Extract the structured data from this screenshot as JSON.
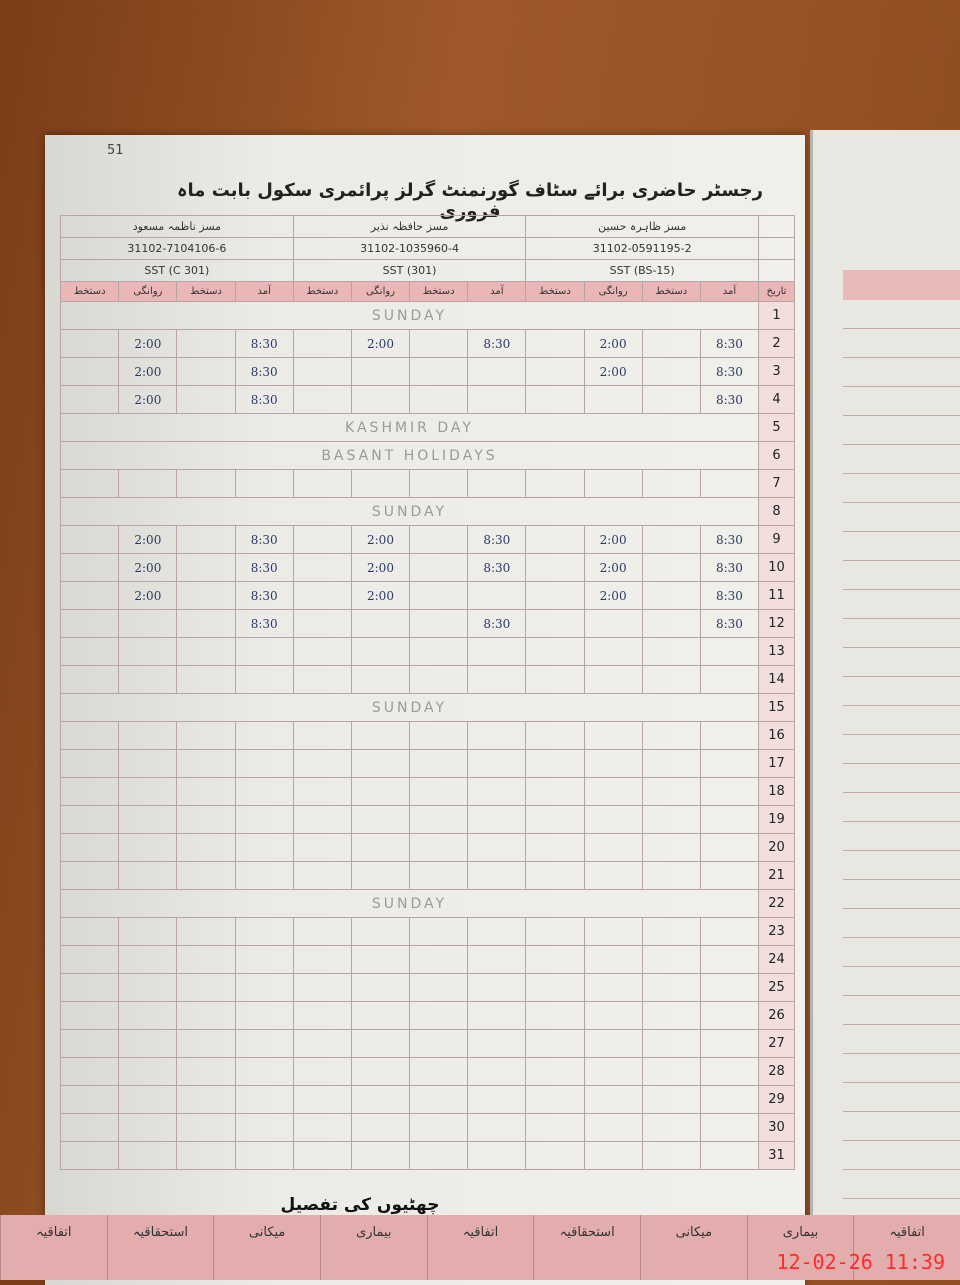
{
  "header": {
    "page_number": "51",
    "title": "رجسٹر حاضری برائے سٹاف گورنمنٹ گرلز پرائمری سکول بابت ماہ فروری"
  },
  "staff": [
    {
      "name": "مسز ظاہرہ حسین",
      "cnic": "31102-0591195-2",
      "post": "SST (BS-15)"
    },
    {
      "name": "مسز حافظہ نذیر",
      "cnic": "31102-1035960-4",
      "post": "SST (301)"
    },
    {
      "name": "مسز ناظمہ مسعود",
      "cnic": "31102-7104106-6",
      "post": "SST (C 301)"
    }
  ],
  "columns": {
    "date": "تاریخ",
    "arrival": "آمد",
    "sign_in": "دستخط",
    "departure": "روانگی",
    "sign_out": "دستخط"
  },
  "rows": [
    {
      "day": 1,
      "note": "SUNDAY"
    },
    {
      "day": 2,
      "times": [
        "8:30",
        "2:00",
        "8:30",
        "2:00",
        "8:30",
        "2:00"
      ]
    },
    {
      "day": 3,
      "times": [
        "8:30",
        "2:00",
        null,
        null,
        "8:30",
        "2:00"
      ]
    },
    {
      "day": 4,
      "times": [
        "8:30",
        null,
        null,
        null,
        "8:30",
        "2:00"
      ]
    },
    {
      "day": 5,
      "note": "KASHMIR DAY"
    },
    {
      "day": 6,
      "note": "BASANT HOLIDAYS"
    },
    {
      "day": 7
    },
    {
      "day": 8,
      "note": "SUNDAY"
    },
    {
      "day": 9,
      "times": [
        "8:30",
        "2:00",
        "8:30",
        "2:00",
        "8:30",
        "2:00"
      ]
    },
    {
      "day": 10,
      "times": [
        "8:30",
        "2:00",
        "8:30",
        "2:00",
        "8:30",
        "2:00"
      ]
    },
    {
      "day": 11,
      "times": [
        "8:30",
        "2:00",
        null,
        "2:00",
        "8:30",
        "2:00"
      ]
    },
    {
      "day": 12,
      "times": [
        "8:30",
        null,
        "8:30",
        null,
        "8:30",
        null
      ]
    },
    {
      "day": 13
    },
    {
      "day": 14
    },
    {
      "day": 15,
      "note": "SUNDAY"
    },
    {
      "day": 16
    },
    {
      "day": 17
    },
    {
      "day": 18
    },
    {
      "day": 19
    },
    {
      "day": 20
    },
    {
      "day": 21
    },
    {
      "day": 22,
      "note": "SUNDAY"
    },
    {
      "day": 23
    },
    {
      "day": 24
    },
    {
      "day": 25
    },
    {
      "day": 26
    },
    {
      "day": 27
    },
    {
      "day": 28
    },
    {
      "day": 29
    },
    {
      "day": 30
    },
    {
      "day": 31
    }
  ],
  "footer": {
    "title": "چھٹیوں کی تفصیل",
    "leave_types": [
      "اتفاقیہ",
      "بیماری",
      "میکانی",
      "استحقاقیہ",
      "اتفاقیہ",
      "بیماری",
      "میکانی",
      "استحقاقیہ",
      "اتفاقیہ"
    ]
  },
  "timestamp": "12-02-26 11:39"
}
